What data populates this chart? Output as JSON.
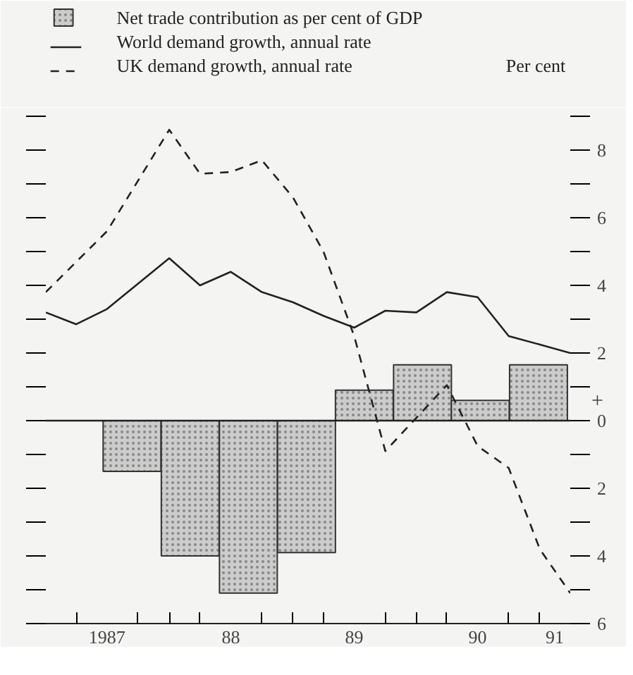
{
  "chart_data": {
    "type": "bar",
    "ylabel": "Per cent",
    "x": [
      "1987-09-13",
      "1988-03-03",
      "1988-08-22",
      "1989-02-10",
      "1989-07-31",
      "1990-01-19",
      "1990-07-09",
      "1990-12-28"
    ],
    "series": [
      {
        "name": "Net trade contribution as per cent of GDP",
        "color": "#cccccc",
        "values": [
          -1.5,
          -4.0,
          -5.1,
          -3.9,
          0.9,
          1.65,
          0.6,
          1.65
        ]
      },
      {
        "name": "World demand  growth, annual rate",
        "type": "line",
        "line_style": "solid",
        "color": "#222222",
        "x": [
          "1987-01",
          "1987-04",
          "1987-07",
          "1988-01",
          "1988-04",
          "1988-07",
          "1988-10",
          "1989-01",
          "1989-04",
          "1989-07",
          "1989-10",
          "1990-01",
          "1990-04",
          "1990-07",
          "1990-10",
          "1991-01",
          "1991-04"
        ],
        "values": [
          3.2,
          2.85,
          3.3,
          4.8,
          4.0,
          4.4,
          3.8,
          3.5,
          3.1,
          2.75,
          3.25,
          3.2,
          3.8,
          3.65,
          2.5,
          2.25,
          2.0
        ]
      },
      {
        "name": "UK demand growth, annual rate",
        "type": "line",
        "line_style": "dashed",
        "color": "#222222",
        "x": [
          "1987-01",
          "1987-07",
          "1988-01",
          "1988-04",
          "1988-07",
          "1988-10",
          "1989-01",
          "1989-04",
          "1989-07",
          "1989-10",
          "1990-04",
          "1990-07",
          "1990-10",
          "1991-01",
          "1991-04"
        ],
        "values": [
          3.8,
          5.6,
          8.6,
          7.3,
          7.35,
          7.7,
          6.6,
          5.0,
          2.5,
          -0.9,
          1.05,
          -0.75,
          -1.4,
          -3.8,
          -5.1
        ]
      }
    ],
    "xlim": [
      "1987-01",
      "1991-04"
    ],
    "xticks": [
      {
        "value": "1987-04",
        "label": null
      },
      {
        "value": "1987-07",
        "label": "1987"
      },
      {
        "value": "1987-10",
        "label": null
      },
      {
        "value": "1988-01",
        "label": null
      },
      {
        "value": "1988-04",
        "label": null
      },
      {
        "value": "1988-07",
        "label": "88"
      },
      {
        "value": "1988-10",
        "label": null
      },
      {
        "value": "1989-01",
        "label": null
      },
      {
        "value": "1989-04",
        "label": null
      },
      {
        "value": "1989-07",
        "label": "89"
      },
      {
        "value": "1989-10",
        "label": null
      },
      {
        "value": "1990-01",
        "label": null
      },
      {
        "value": "1990-04",
        "label": null
      },
      {
        "value": "1990-07",
        "label": "90"
      },
      {
        "value": "1990-10",
        "label": null
      },
      {
        "value": "1991-01",
        "label": null
      },
      {
        "value": "1991-02-14",
        "label": "91"
      }
    ],
    "ylim": [
      -6,
      9
    ],
    "yticks": [
      {
        "value": -6,
        "label": "6"
      },
      {
        "value": -5,
        "label": null
      },
      {
        "value": -4,
        "label": "4"
      },
      {
        "value": -3,
        "label": null
      },
      {
        "value": -2,
        "label": "2"
      },
      {
        "value": -1,
        "label": null
      },
      0,
      {
        "value": 1,
        "label": null
      },
      2,
      {
        "value": 3,
        "label": null
      },
      4,
      {
        "value": 5,
        "label": null
      },
      6,
      {
        "value": 7,
        "label": null
      },
      8,
      {
        "value": 9,
        "label": null
      }
    ],
    "ref_lines": [
      {
        "axis": "y",
        "value": 0,
        "color": "#222222"
      }
    ],
    "annotations": [
      "+"
    ],
    "legend": "top left",
    "grid": false
  }
}
